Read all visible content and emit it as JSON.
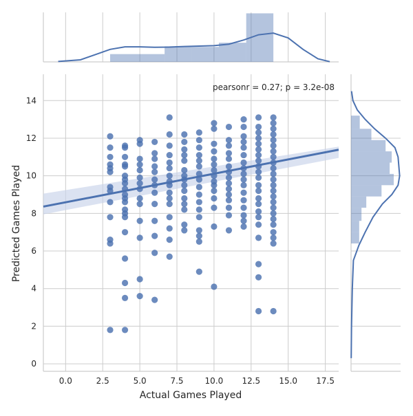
{
  "chart_data": {
    "type": "scatter",
    "subtype": "jointplot-with-regression-and-marginal-distributions",
    "xlabel": "Actual Games Played",
    "ylabel": "Predicted Games Played",
    "xlim": [
      -1.5,
      18.4
    ],
    "ylim": [
      -0.4,
      15.4
    ],
    "x_ticks": [
      0.0,
      2.5,
      5.0,
      7.5,
      10.0,
      12.5,
      15.0,
      17.5
    ],
    "x_tick_labels": [
      "0.0",
      "2.5",
      "5.0",
      "7.5",
      "10.0",
      "12.5",
      "15.0",
      "17.5"
    ],
    "y_ticks": [
      0,
      2,
      4,
      6,
      8,
      10,
      12,
      14
    ],
    "y_tick_labels": [
      "0",
      "2",
      "4",
      "6",
      "8",
      "10",
      "12",
      "14"
    ],
    "grid": true,
    "annotation": "pearsonr = 0.27; p = 3.2e-08",
    "colors": {
      "points": "#4c72b0",
      "line": "#4c72b0",
      "band": "#c7d3ea",
      "hist": "#4c72b0",
      "grid": "#cccccc",
      "spine": "#cccccc"
    },
    "regression": {
      "slope": 0.152,
      "intercept": 8.59,
      "ci_at_xmin": [
        7.95,
        9.05
      ],
      "ci_at_xmax": [
        10.95,
        11.55
      ]
    },
    "points": [
      {
        "x": 3,
        "y": 12.1
      },
      {
        "x": 3,
        "y": 11.5
      },
      {
        "x": 3,
        "y": 11.0
      },
      {
        "x": 3,
        "y": 10.6
      },
      {
        "x": 3,
        "y": 10.4
      },
      {
        "x": 3,
        "y": 10.2
      },
      {
        "x": 3,
        "y": 9.4
      },
      {
        "x": 3,
        "y": 9.2
      },
      {
        "x": 3,
        "y": 8.6
      },
      {
        "x": 3,
        "y": 7.8
      },
      {
        "x": 3,
        "y": 6.6
      },
      {
        "x": 3,
        "y": 6.4
      },
      {
        "x": 3,
        "y": 1.8
      },
      {
        "x": 4,
        "y": 11.6
      },
      {
        "x": 4,
        "y": 11.5
      },
      {
        "x": 4,
        "y": 11.0
      },
      {
        "x": 4,
        "y": 10.6
      },
      {
        "x": 4,
        "y": 10.5
      },
      {
        "x": 4,
        "y": 10.0
      },
      {
        "x": 4,
        "y": 9.8
      },
      {
        "x": 4,
        "y": 9.6
      },
      {
        "x": 4,
        "y": 9.3
      },
      {
        "x": 4,
        "y": 9.0
      },
      {
        "x": 4,
        "y": 8.8
      },
      {
        "x": 4,
        "y": 8.6
      },
      {
        "x": 4,
        "y": 8.2
      },
      {
        "x": 4,
        "y": 8.0
      },
      {
        "x": 4,
        "y": 7.8
      },
      {
        "x": 4,
        "y": 7.0
      },
      {
        "x": 4,
        "y": 5.6
      },
      {
        "x": 4,
        "y": 4.3
      },
      {
        "x": 4,
        "y": 3.5
      },
      {
        "x": 4,
        "y": 1.8
      },
      {
        "x": 5,
        "y": 11.9
      },
      {
        "x": 5,
        "y": 11.7
      },
      {
        "x": 5,
        "y": 10.9
      },
      {
        "x": 5,
        "y": 10.6
      },
      {
        "x": 5,
        "y": 10.3
      },
      {
        "x": 5,
        "y": 9.9
      },
      {
        "x": 5,
        "y": 9.6
      },
      {
        "x": 5,
        "y": 9.3
      },
      {
        "x": 5,
        "y": 8.8
      },
      {
        "x": 5,
        "y": 8.5
      },
      {
        "x": 5,
        "y": 7.6
      },
      {
        "x": 5,
        "y": 6.7
      },
      {
        "x": 5,
        "y": 4.5
      },
      {
        "x": 5,
        "y": 3.6
      },
      {
        "x": 6,
        "y": 11.8
      },
      {
        "x": 6,
        "y": 11.2
      },
      {
        "x": 6,
        "y": 10.9
      },
      {
        "x": 6,
        "y": 10.5
      },
      {
        "x": 6,
        "y": 10.2
      },
      {
        "x": 6,
        "y": 9.8
      },
      {
        "x": 6,
        "y": 9.5
      },
      {
        "x": 6,
        "y": 9.1
      },
      {
        "x": 6,
        "y": 8.5
      },
      {
        "x": 6,
        "y": 7.6
      },
      {
        "x": 6,
        "y": 6.8
      },
      {
        "x": 6,
        "y": 5.9
      },
      {
        "x": 6,
        "y": 3.4
      },
      {
        "x": 7,
        "y": 13.1
      },
      {
        "x": 7,
        "y": 12.2
      },
      {
        "x": 7,
        "y": 11.6
      },
      {
        "x": 7,
        "y": 11.1
      },
      {
        "x": 7,
        "y": 10.7
      },
      {
        "x": 7,
        "y": 10.4
      },
      {
        "x": 7,
        "y": 10.0
      },
      {
        "x": 7,
        "y": 9.7
      },
      {
        "x": 7,
        "y": 9.5
      },
      {
        "x": 7,
        "y": 9.1
      },
      {
        "x": 7,
        "y": 8.8
      },
      {
        "x": 7,
        "y": 8.5
      },
      {
        "x": 7,
        "y": 7.8
      },
      {
        "x": 7,
        "y": 7.2
      },
      {
        "x": 7,
        "y": 6.6
      },
      {
        "x": 7,
        "y": 5.7
      },
      {
        "x": 8,
        "y": 12.2
      },
      {
        "x": 8,
        "y": 11.8
      },
      {
        "x": 8,
        "y": 11.4
      },
      {
        "x": 8,
        "y": 11.1
      },
      {
        "x": 8,
        "y": 10.8
      },
      {
        "x": 8,
        "y": 10.3
      },
      {
        "x": 8,
        "y": 10.0
      },
      {
        "x": 8,
        "y": 9.8
      },
      {
        "x": 8,
        "y": 9.5
      },
      {
        "x": 8,
        "y": 9.2
      },
      {
        "x": 8,
        "y": 8.8
      },
      {
        "x": 8,
        "y": 8.5
      },
      {
        "x": 8,
        "y": 8.2
      },
      {
        "x": 8,
        "y": 7.4
      },
      {
        "x": 8,
        "y": 7.1
      },
      {
        "x": 9,
        "y": 12.3
      },
      {
        "x": 9,
        "y": 11.9
      },
      {
        "x": 9,
        "y": 11.5
      },
      {
        "x": 9,
        "y": 11.1
      },
      {
        "x": 9,
        "y": 10.8
      },
      {
        "x": 9,
        "y": 10.5
      },
      {
        "x": 9,
        "y": 10.1
      },
      {
        "x": 9,
        "y": 9.8
      },
      {
        "x": 9,
        "y": 9.4
      },
      {
        "x": 9,
        "y": 9.0
      },
      {
        "x": 9,
        "y": 8.6
      },
      {
        "x": 9,
        "y": 8.2
      },
      {
        "x": 9,
        "y": 7.8
      },
      {
        "x": 9,
        "y": 7.1
      },
      {
        "x": 9,
        "y": 6.8
      },
      {
        "x": 9,
        "y": 6.5
      },
      {
        "x": 9,
        "y": 4.9
      },
      {
        "x": 10,
        "y": 12.8
      },
      {
        "x": 10,
        "y": 12.5
      },
      {
        "x": 10,
        "y": 11.7
      },
      {
        "x": 10,
        "y": 11.3
      },
      {
        "x": 10,
        "y": 10.9
      },
      {
        "x": 10,
        "y": 10.6
      },
      {
        "x": 10,
        "y": 10.3
      },
      {
        "x": 10,
        "y": 10.0
      },
      {
        "x": 10,
        "y": 9.7
      },
      {
        "x": 10,
        "y": 9.5
      },
      {
        "x": 10,
        "y": 9.2
      },
      {
        "x": 10,
        "y": 8.8
      },
      {
        "x": 10,
        "y": 8.3
      },
      {
        "x": 10,
        "y": 7.3
      },
      {
        "x": 10,
        "y": 4.1
      },
      {
        "x": 11,
        "y": 12.6
      },
      {
        "x": 11,
        "y": 11.9
      },
      {
        "x": 11,
        "y": 11.6
      },
      {
        "x": 11,
        "y": 11.2
      },
      {
        "x": 11,
        "y": 10.9
      },
      {
        "x": 11,
        "y": 10.5
      },
      {
        "x": 11,
        "y": 10.2
      },
      {
        "x": 11,
        "y": 9.9
      },
      {
        "x": 11,
        "y": 9.6
      },
      {
        "x": 11,
        "y": 9.3
      },
      {
        "x": 11,
        "y": 9.0
      },
      {
        "x": 11,
        "y": 8.7
      },
      {
        "x": 11,
        "y": 8.3
      },
      {
        "x": 11,
        "y": 7.9
      },
      {
        "x": 11,
        "y": 7.1
      },
      {
        "x": 12,
        "y": 13.0
      },
      {
        "x": 12,
        "y": 12.6
      },
      {
        "x": 12,
        "y": 12.1
      },
      {
        "x": 12,
        "y": 11.8
      },
      {
        "x": 12,
        "y": 11.5
      },
      {
        "x": 12,
        "y": 11.1
      },
      {
        "x": 12,
        "y": 10.7
      },
      {
        "x": 12,
        "y": 10.4
      },
      {
        "x": 12,
        "y": 10.1
      },
      {
        "x": 12,
        "y": 9.8
      },
      {
        "x": 12,
        "y": 9.5
      },
      {
        "x": 12,
        "y": 9.1
      },
      {
        "x": 12,
        "y": 8.7
      },
      {
        "x": 12,
        "y": 8.3
      },
      {
        "x": 12,
        "y": 7.9
      },
      {
        "x": 12,
        "y": 7.6
      },
      {
        "x": 12,
        "y": 7.3
      },
      {
        "x": 13,
        "y": 13.1
      },
      {
        "x": 13,
        "y": 12.6
      },
      {
        "x": 13,
        "y": 12.3
      },
      {
        "x": 13,
        "y": 12.0
      },
      {
        "x": 13,
        "y": 11.7
      },
      {
        "x": 13,
        "y": 11.4
      },
      {
        "x": 13,
        "y": 11.1
      },
      {
        "x": 13,
        "y": 10.8
      },
      {
        "x": 13,
        "y": 10.5
      },
      {
        "x": 13,
        "y": 10.2
      },
      {
        "x": 13,
        "y": 9.9
      },
      {
        "x": 13,
        "y": 9.5
      },
      {
        "x": 13,
        "y": 9.2
      },
      {
        "x": 13,
        "y": 8.8
      },
      {
        "x": 13,
        "y": 8.5
      },
      {
        "x": 13,
        "y": 8.1
      },
      {
        "x": 13,
        "y": 7.8
      },
      {
        "x": 13,
        "y": 7.4
      },
      {
        "x": 13,
        "y": 6.7
      },
      {
        "x": 13,
        "y": 5.3
      },
      {
        "x": 13,
        "y": 4.6
      },
      {
        "x": 13,
        "y": 2.8
      },
      {
        "x": 14,
        "y": 13.1
      },
      {
        "x": 14,
        "y": 12.8
      },
      {
        "x": 14,
        "y": 12.5
      },
      {
        "x": 14,
        "y": 12.2
      },
      {
        "x": 14,
        "y": 11.9
      },
      {
        "x": 14,
        "y": 11.6
      },
      {
        "x": 14,
        "y": 11.3
      },
      {
        "x": 14,
        "y": 11.0
      },
      {
        "x": 14,
        "y": 10.7
      },
      {
        "x": 14,
        "y": 10.4
      },
      {
        "x": 14,
        "y": 10.1
      },
      {
        "x": 14,
        "y": 9.8
      },
      {
        "x": 14,
        "y": 9.5
      },
      {
        "x": 14,
        "y": 9.2
      },
      {
        "x": 14,
        "y": 8.9
      },
      {
        "x": 14,
        "y": 8.6
      },
      {
        "x": 14,
        "y": 8.3
      },
      {
        "x": 14,
        "y": 8.0
      },
      {
        "x": 14,
        "y": 7.7
      },
      {
        "x": 14,
        "y": 7.4
      },
      {
        "x": 14,
        "y": 7.0
      },
      {
        "x": 14,
        "y": 6.7
      },
      {
        "x": 14,
        "y": 6.4
      },
      {
        "x": 14,
        "y": 2.8
      }
    ],
    "x_histogram": {
      "bin_edges": [
        3.0,
        4.83,
        6.67,
        8.5,
        10.33,
        12.17,
        14.0
      ],
      "counts": [
        13,
        13,
        26,
        25,
        32,
        81
      ],
      "kde": [
        [
          -0.5,
          0.002
        ],
        [
          1.0,
          0.01
        ],
        [
          2.0,
          0.035
        ],
        [
          3.0,
          0.06
        ],
        [
          4.0,
          0.072
        ],
        [
          5.0,
          0.072
        ],
        [
          6.0,
          0.07
        ],
        [
          7.0,
          0.071
        ],
        [
          8.0,
          0.074
        ],
        [
          9.0,
          0.076
        ],
        [
          10.0,
          0.078
        ],
        [
          11.0,
          0.085
        ],
        [
          12.0,
          0.105
        ],
        [
          13.0,
          0.13
        ],
        [
          14.0,
          0.138
        ],
        [
          15.0,
          0.115
        ],
        [
          16.0,
          0.06
        ],
        [
          17.0,
          0.015
        ],
        [
          17.8,
          0.001
        ]
      ]
    },
    "y_histogram": {
      "bins": [
        {
          "lo": 6.4,
          "hi": 7.0,
          "count": 8
        },
        {
          "lo": 7.0,
          "hi": 7.6,
          "count": 8
        },
        {
          "lo": 7.6,
          "hi": 8.3,
          "count": 12
        },
        {
          "lo": 8.3,
          "hi": 8.9,
          "count": 15
        },
        {
          "lo": 8.9,
          "hi": 9.5,
          "count": 30
        },
        {
          "lo": 9.5,
          "hi": 10.1,
          "count": 42
        },
        {
          "lo": 10.1,
          "hi": 10.7,
          "count": 38
        },
        {
          "lo": 10.7,
          "hi": 11.3,
          "count": 40
        },
        {
          "lo": 11.3,
          "hi": 11.9,
          "count": 34
        },
        {
          "lo": 11.9,
          "hi": 12.5,
          "count": 20
        },
        {
          "lo": 12.5,
          "hi": 13.2,
          "count": 10
        }
      ],
      "kde": [
        [
          0.3,
          0.001
        ],
        [
          2.0,
          0.003
        ],
        [
          4.0,
          0.008
        ],
        [
          5.5,
          0.015
        ],
        [
          6.3,
          0.05
        ],
        [
          7.0,
          0.09
        ],
        [
          7.8,
          0.14
        ],
        [
          8.5,
          0.2
        ],
        [
          9.0,
          0.26
        ],
        [
          9.5,
          0.3
        ],
        [
          10.0,
          0.31
        ],
        [
          10.5,
          0.305
        ],
        [
          11.0,
          0.3
        ],
        [
          11.5,
          0.28
        ],
        [
          12.0,
          0.22
        ],
        [
          12.5,
          0.15
        ],
        [
          13.0,
          0.09
        ],
        [
          13.5,
          0.04
        ],
        [
          14.0,
          0.012
        ],
        [
          14.5,
          0.003
        ]
      ]
    }
  }
}
